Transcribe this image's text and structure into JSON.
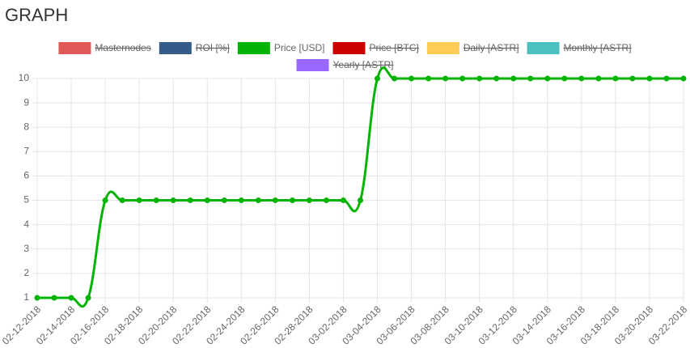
{
  "title": "GRAPH",
  "chart_data": {
    "type": "line",
    "categories": [
      "02-12-2018",
      null,
      "02-14-2018",
      null,
      "02-16-2018",
      null,
      "02-18-2018",
      null,
      "02-20-2018",
      null,
      "02-22-2018",
      null,
      "02-24-2018",
      null,
      "02-26-2018",
      null,
      "02-28-2018",
      null,
      "03-02-2018",
      null,
      "03-04-2018",
      null,
      "03-06-2018",
      null,
      "03-08-2018",
      null,
      "03-10-2018",
      null,
      "03-12-2018",
      null,
      "03-14-2018",
      null,
      "03-16-2018",
      null,
      "03-18-2018",
      null,
      "03-20-2018",
      null,
      "03-22-2018"
    ],
    "series": [
      {
        "name": "Masternodes",
        "color": "#e05a58",
        "hidden": true
      },
      {
        "name": "ROI [%]",
        "color": "#355c89",
        "hidden": true
      },
      {
        "name": "Price [USD]",
        "color": "#04b404",
        "hidden": false,
        "values": [
          1,
          1,
          1,
          1,
          5,
          5,
          5,
          5,
          5,
          5,
          5,
          5,
          5,
          5,
          5,
          5,
          5,
          5,
          5,
          5,
          10,
          10,
          10,
          10,
          10,
          10,
          10,
          10,
          10,
          10,
          10,
          10,
          10,
          10,
          10,
          10,
          10,
          10,
          10
        ]
      },
      {
        "name": "Price [BTC]",
        "color": "#cc0000",
        "hidden": true
      },
      {
        "name": "Daily [ASTR]",
        "color": "#ffcd56",
        "hidden": true
      },
      {
        "name": "Monthly [ASTR]",
        "color": "#4bc0c0",
        "hidden": true
      },
      {
        "name": "Yearly [ASTR]",
        "color": "#9966ff",
        "hidden": true
      }
    ],
    "ylim": [
      1,
      10
    ],
    "yticks": [
      1,
      2,
      3,
      4,
      5,
      6,
      7,
      8,
      9,
      10
    ],
    "grid": true
  }
}
